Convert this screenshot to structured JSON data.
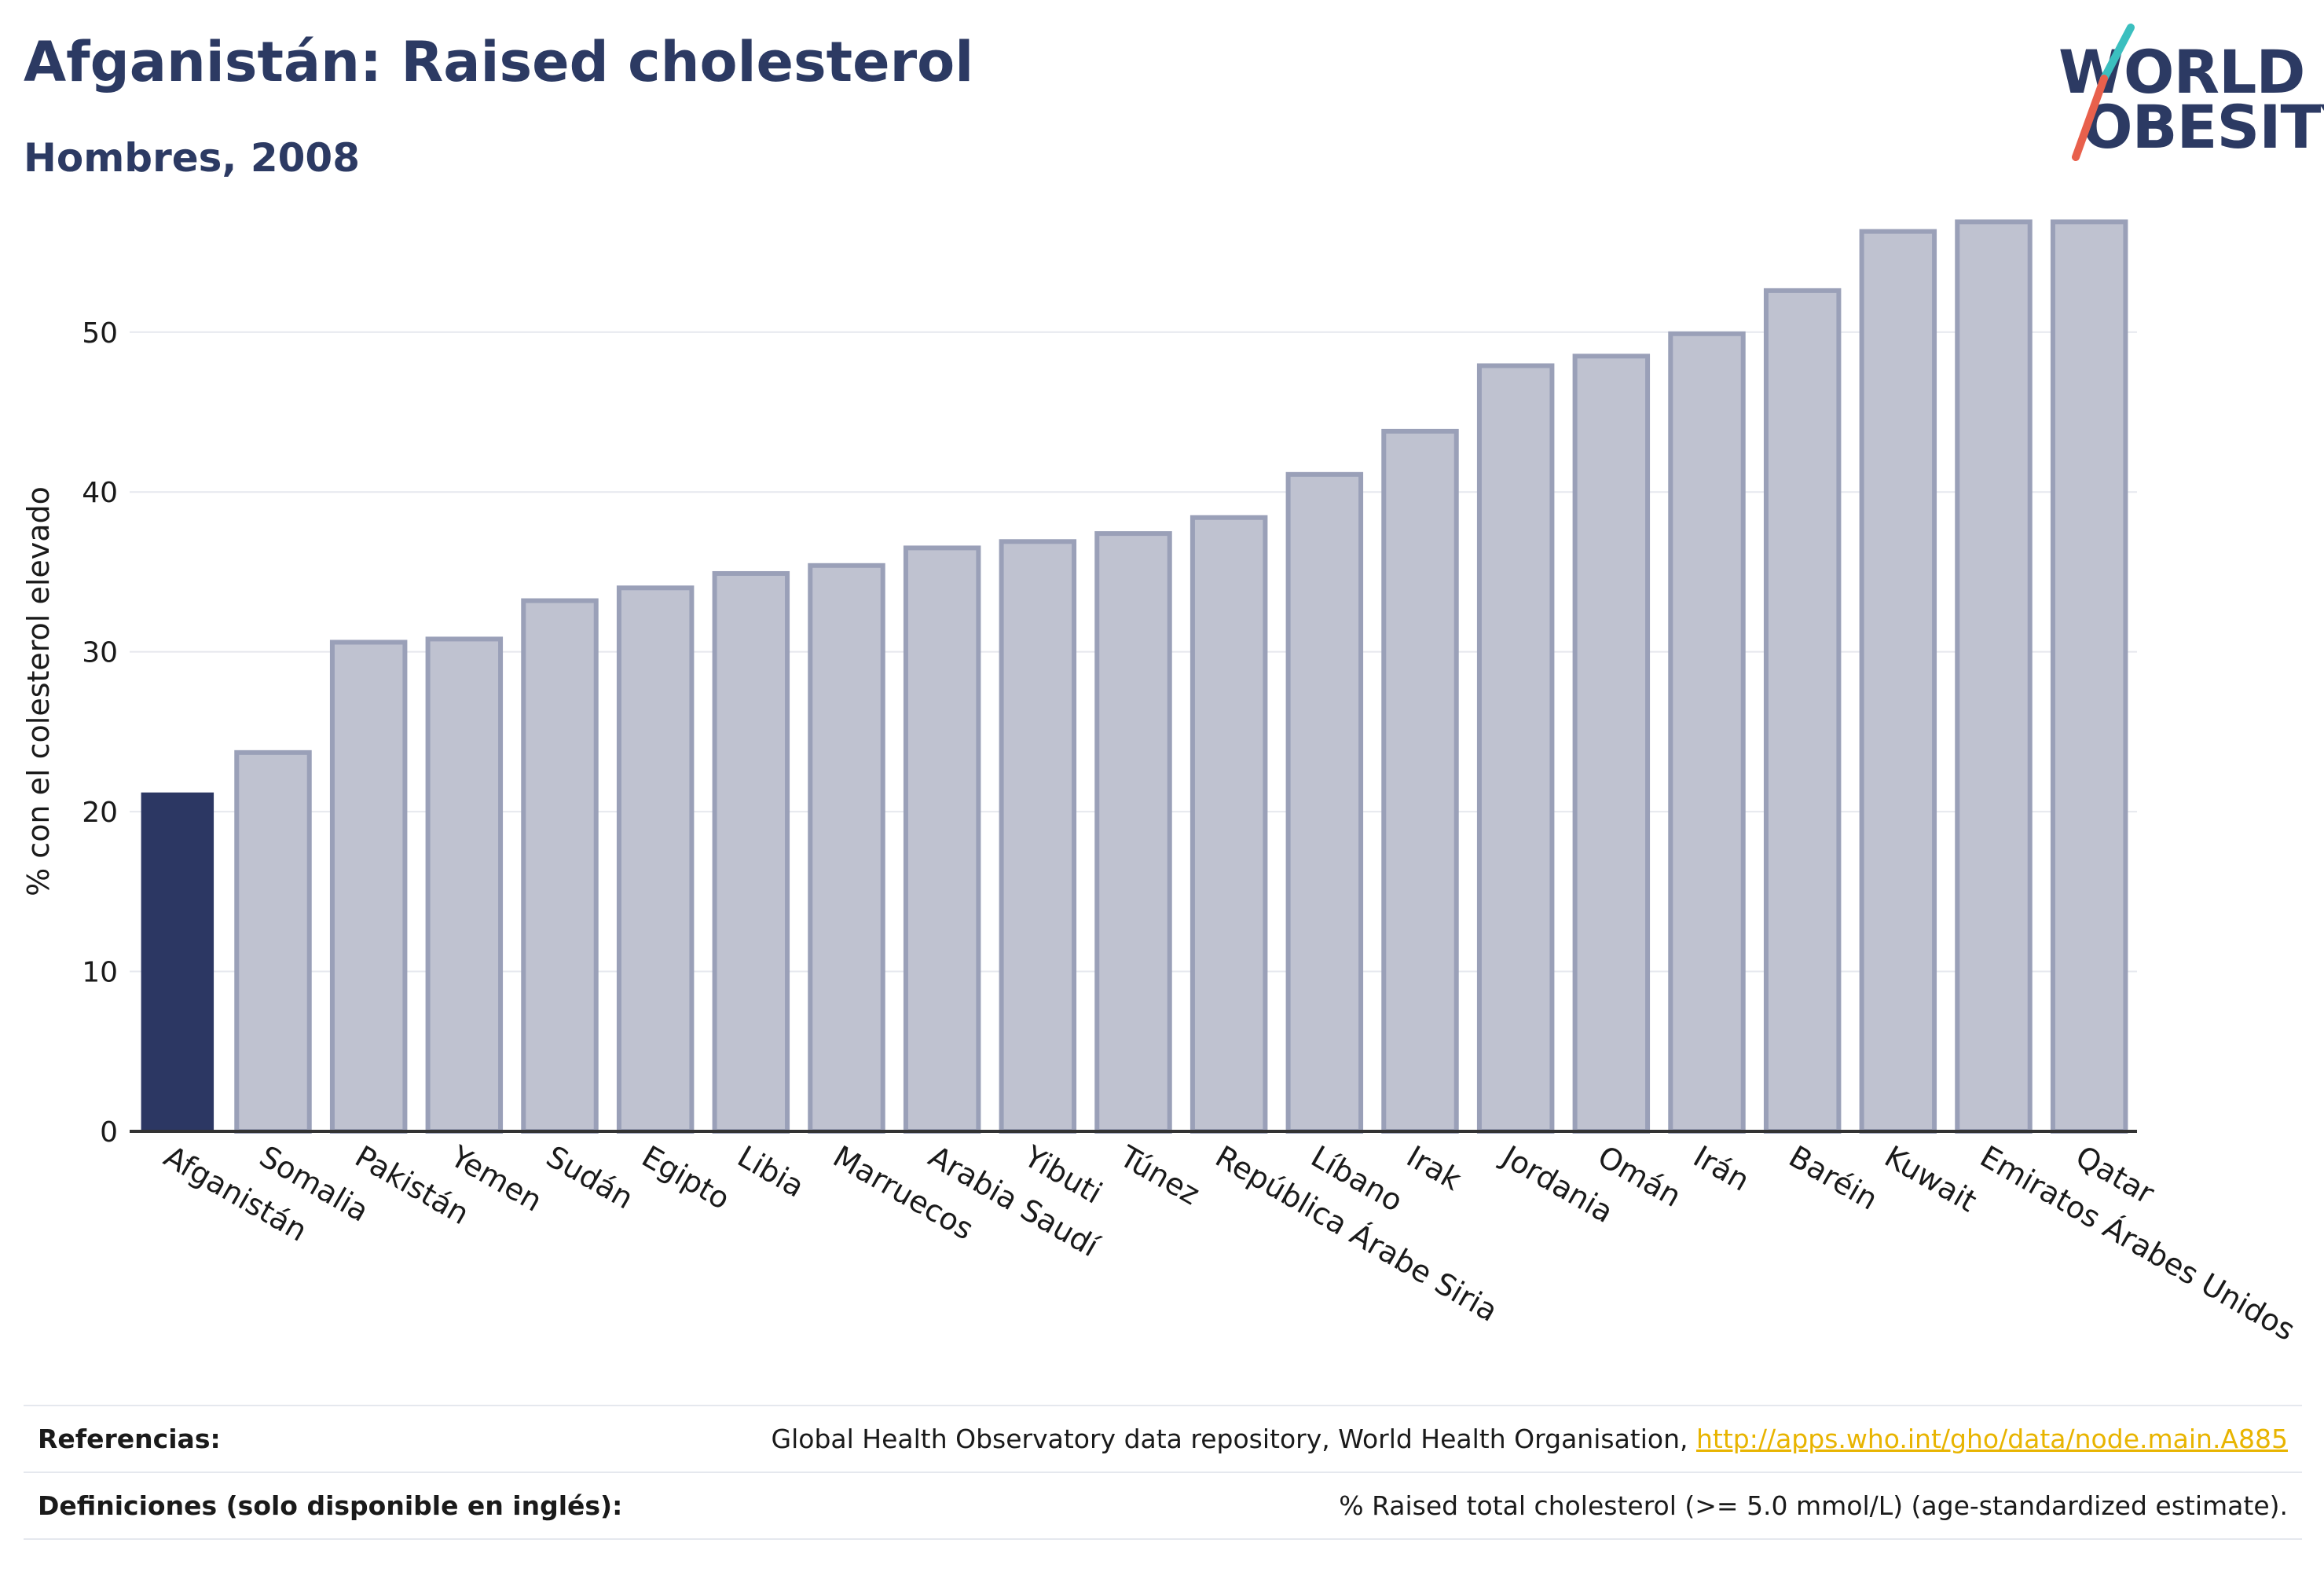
{
  "header": {
    "title": "Afganistán: Raised cholesterol",
    "subtitle": "Hombres, 2008"
  },
  "logo": {
    "line1": "WORLD",
    "line2": "OBESITY",
    "colors": {
      "text": "#2c3a63",
      "slash_top": "#3bbfbf",
      "slash_bottom": "#e8604c"
    }
  },
  "colors": {
    "highlight": "#2c3763",
    "bar": "#bfc2d0",
    "bar_border": "#9aa0b8",
    "grid": "#e6e8ee"
  },
  "chart_data": {
    "type": "bar",
    "categories": [
      "Afganistán",
      "Somalia",
      "Pakistán",
      "Yemen",
      "Sudán",
      "Egipto",
      "Libia",
      "Marruecos",
      "Arabia Saudí",
      "Yibuti",
      "Túnez",
      "República Árabe Siria",
      "Líbano",
      "Irak",
      "Jordania",
      "Omán",
      "Irán",
      "Baréin",
      "Kuwait",
      "Emiratos Árabes Unidos",
      "Qatar"
    ],
    "values": [
      21.2,
      23.7,
      30.6,
      30.8,
      33.2,
      34.0,
      34.9,
      35.4,
      36.5,
      36.9,
      37.4,
      38.4,
      41.1,
      43.8,
      47.9,
      48.5,
      49.9,
      52.6,
      56.3,
      56.9,
      56.9
    ],
    "highlight_index": 0,
    "title": "",
    "xlabel": "",
    "ylabel": "% con el colesterol elevado",
    "ylim": [
      0,
      58
    ],
    "yticks": [
      0,
      10,
      20,
      30,
      40,
      50
    ],
    "grid": true
  },
  "footer": {
    "references_label": "Referencias:",
    "references_text": "Global Health Observatory data repository, World Health Organisation, ",
    "references_link": "http://apps.who.int/gho/data/node.main.A885",
    "definitions_label": "Definiciones (solo disponible en inglés):",
    "definitions_text": "% Raised total cholesterol (>= 5.0 mmol/L) (age-standardized estimate)."
  }
}
